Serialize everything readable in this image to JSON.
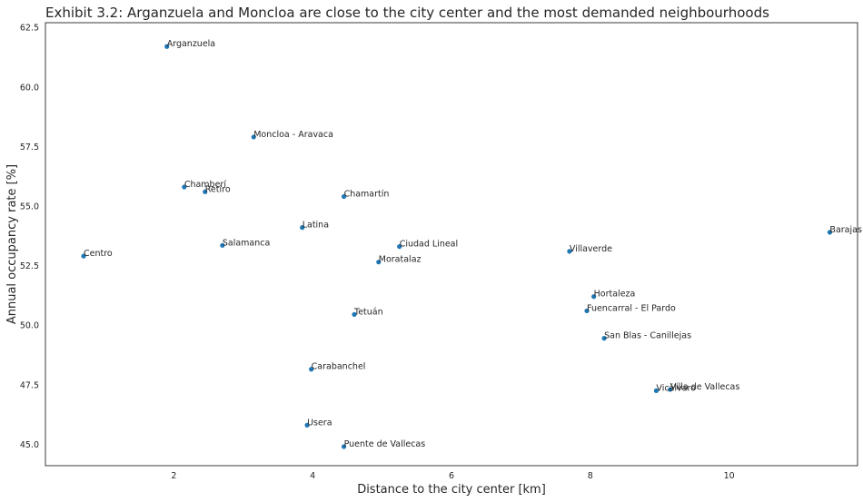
{
  "chart_data": {
    "type": "scatter",
    "title": "Exhibit 3.2: Arganzuela and Moncloa are close to the city center and the most demanded neighbourhoods",
    "xlabel": "Distance to the city center [km]",
    "ylabel": "Annual occupancy rate [%]",
    "xlim": [
      0.15,
      11.85
    ],
    "ylim": [
      44.1,
      62.7
    ],
    "xticks": [
      {
        "value": 2,
        "label": "2"
      },
      {
        "value": 4,
        "label": "4"
      },
      {
        "value": 6,
        "label": "6"
      },
      {
        "value": 8,
        "label": "8"
      },
      {
        "value": 10,
        "label": "10"
      }
    ],
    "yticks": [
      {
        "value": 45.0,
        "label": "45.0"
      },
      {
        "value": 47.5,
        "label": "47.5"
      },
      {
        "value": 50.0,
        "label": "50.0"
      },
      {
        "value": 52.5,
        "label": "52.5"
      },
      {
        "value": 55.0,
        "label": "55.0"
      },
      {
        "value": 57.5,
        "label": "57.5"
      },
      {
        "value": 60.0,
        "label": "60.0"
      },
      {
        "value": 62.5,
        "label": "62.5"
      }
    ],
    "grid": false,
    "marker_color": "#1f77b4",
    "points": [
      {
        "label": "Arganzuela",
        "x": 1.9,
        "y": 61.7
      },
      {
        "label": "Moncloa - Aravaca",
        "x": 3.15,
        "y": 57.9
      },
      {
        "label": "Chamberí",
        "x": 2.15,
        "y": 55.8
      },
      {
        "label": "Retiro",
        "x": 2.45,
        "y": 55.6
      },
      {
        "label": "Chamartín",
        "x": 4.45,
        "y": 55.4
      },
      {
        "label": "Latina",
        "x": 3.85,
        "y": 54.1
      },
      {
        "label": "Barajas",
        "x": 11.45,
        "y": 53.9
      },
      {
        "label": "Salamanca",
        "x": 2.7,
        "y": 53.35
      },
      {
        "label": "Ciudad Lineal",
        "x": 5.25,
        "y": 53.3
      },
      {
        "label": "Villaverde",
        "x": 7.7,
        "y": 53.1
      },
      {
        "label": "Centro",
        "x": 0.7,
        "y": 52.9
      },
      {
        "label": "Moratalaz",
        "x": 4.95,
        "y": 52.65
      },
      {
        "label": "Hortaleza",
        "x": 8.05,
        "y": 51.2
      },
      {
        "label": "Fuencarral - El Pardo",
        "x": 7.95,
        "y": 50.6
      },
      {
        "label": "Tetuán",
        "x": 4.6,
        "y": 50.45
      },
      {
        "label": "San Blas - Canillejas",
        "x": 8.2,
        "y": 49.45
      },
      {
        "label": "Carabanchel",
        "x": 3.98,
        "y": 48.15
      },
      {
        "label": "Villa de Vallecas",
        "x": 9.15,
        "y": 47.3
      },
      {
        "label": "Vicálvaro",
        "x": 8.95,
        "y": 47.25
      },
      {
        "label": "Usera",
        "x": 3.92,
        "y": 45.8
      },
      {
        "label": "Puente de Vallecas",
        "x": 4.45,
        "y": 44.9
      }
    ]
  }
}
